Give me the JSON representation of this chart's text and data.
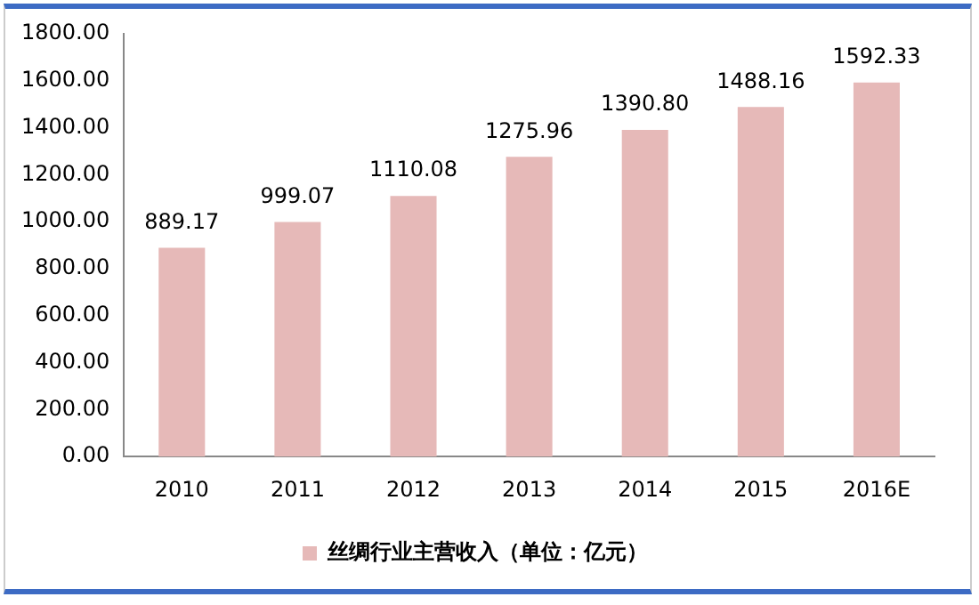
{
  "chart_data": {
    "type": "bar",
    "categories": [
      "2010",
      "2011",
      "2012",
      "2013",
      "2014",
      "2015",
      "2016E"
    ],
    "series": [
      {
        "name": "丝绸行业主营收入（单位：亿元）",
        "color": "#e6b9b8",
        "values": [
          889.17,
          999.07,
          1110.08,
          1275.96,
          1390.8,
          1488.16,
          1592.33
        ],
        "value_labels": [
          "889.17",
          "999.07",
          "1110.08",
          "1275.96",
          "1390.80",
          "1488.16",
          "1592.33"
        ]
      }
    ],
    "ylim": [
      0,
      1800
    ],
    "yticks": [
      {
        "value": 0,
        "label": "0.00"
      },
      {
        "value": 200,
        "label": "200.00"
      },
      {
        "value": 400,
        "label": "400.00"
      },
      {
        "value": 600,
        "label": "600.00"
      },
      {
        "value": 800,
        "label": "800.00"
      },
      {
        "value": 1000,
        "label": "1000.00"
      },
      {
        "value": 1200,
        "label": "1200.00"
      },
      {
        "value": 1400,
        "label": "1400.00"
      },
      {
        "value": 1600,
        "label": "1600.00"
      },
      {
        "value": 1800,
        "label": "1800.00"
      }
    ],
    "grid": false,
    "legend": "bottom"
  }
}
